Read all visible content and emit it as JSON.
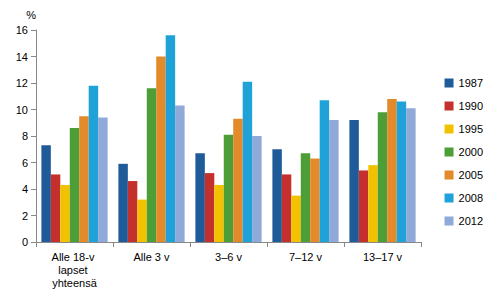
{
  "chart_data": {
    "type": "bar",
    "y_label": "%",
    "categories": [
      "Alle 18-v lapset yhteensä",
      "Alle 3 v",
      "3–6 v",
      "7–12 v",
      "13–17 v"
    ],
    "series": [
      {
        "name": "1987",
        "color": "#1f5b99",
        "values": [
          7.3,
          5.9,
          6.7,
          7.0,
          9.2
        ]
      },
      {
        "name": "1990",
        "color": "#c4302b",
        "values": [
          5.1,
          4.6,
          5.2,
          5.1,
          5.4
        ]
      },
      {
        "name": "1995",
        "color": "#f2c200",
        "values": [
          4.3,
          3.2,
          4.3,
          3.5,
          5.8
        ]
      },
      {
        "name": "2000",
        "color": "#4d9e36",
        "values": [
          8.6,
          11.6,
          8.1,
          6.7,
          9.8
        ]
      },
      {
        "name": "2005",
        "color": "#e38a2a",
        "values": [
          9.5,
          14.0,
          9.3,
          6.3,
          10.8
        ]
      },
      {
        "name": "2008",
        "color": "#1ea2d8",
        "values": [
          11.8,
          15.6,
          12.1,
          10.7,
          10.6
        ]
      },
      {
        "name": "2012",
        "color": "#8fa9d9",
        "values": [
          9.4,
          10.3,
          8.0,
          9.2,
          10.1
        ]
      }
    ],
    "ylim": [
      0,
      16
    ],
    "yticks": [
      0,
      2,
      4,
      6,
      8,
      10,
      12,
      14,
      16
    ],
    "grid": false,
    "legend": "right"
  }
}
